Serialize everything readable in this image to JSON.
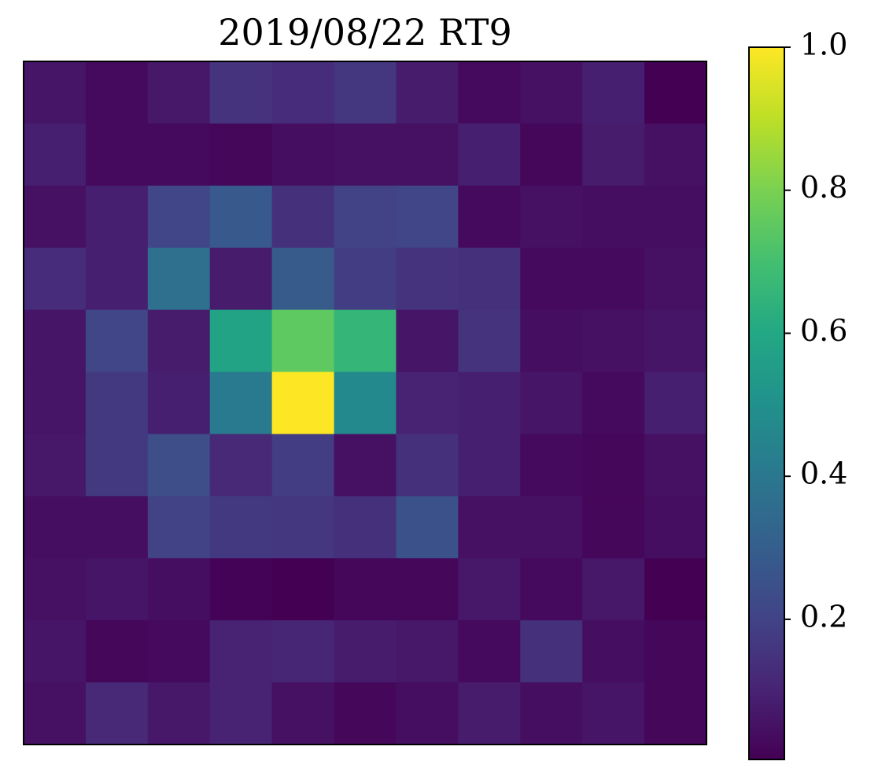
{
  "chart_data": {
    "type": "heatmap",
    "title": "2019/08/22 RT9",
    "colormap": "viridis",
    "values": [
      [
        0.06,
        0.03,
        0.07,
        0.15,
        0.13,
        0.16,
        0.08,
        0.03,
        0.05,
        0.09,
        0.004
      ],
      [
        0.09,
        0.03,
        0.03,
        0.02,
        0.04,
        0.05,
        0.05,
        0.09,
        0.02,
        0.08,
        0.05
      ],
      [
        0.05,
        0.09,
        0.21,
        0.28,
        0.14,
        0.2,
        0.21,
        0.03,
        0.05,
        0.04,
        0.04
      ],
      [
        0.13,
        0.09,
        0.37,
        0.08,
        0.29,
        0.18,
        0.15,
        0.14,
        0.03,
        0.03,
        0.05
      ],
      [
        0.06,
        0.21,
        0.08,
        0.58,
        0.75,
        0.66,
        0.06,
        0.15,
        0.04,
        0.05,
        0.06
      ],
      [
        0.06,
        0.17,
        0.09,
        0.41,
        1.0,
        0.47,
        0.1,
        0.09,
        0.06,
        0.03,
        0.09
      ],
      [
        0.07,
        0.17,
        0.24,
        0.12,
        0.18,
        0.05,
        0.14,
        0.09,
        0.03,
        0.02,
        0.05
      ],
      [
        0.04,
        0.04,
        0.2,
        0.17,
        0.16,
        0.14,
        0.25,
        0.05,
        0.05,
        0.02,
        0.04
      ],
      [
        0.05,
        0.06,
        0.04,
        0.01,
        0.004,
        0.02,
        0.02,
        0.07,
        0.03,
        0.07,
        0.004
      ],
      [
        0.06,
        0.02,
        0.03,
        0.1,
        0.11,
        0.08,
        0.07,
        0.03,
        0.14,
        0.04,
        0.02
      ],
      [
        0.05,
        0.12,
        0.07,
        0.1,
        0.05,
        0.02,
        0.04,
        0.08,
        0.04,
        0.06,
        0.02
      ]
    ],
    "zlim": [
      0.004,
      1.0
    ],
    "zticks": [
      0.2,
      0.4,
      0.6,
      0.8,
      {
        "value": 1.0,
        "label": "1.0"
      }
    ]
  }
}
